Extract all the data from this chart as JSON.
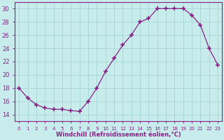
{
  "x": [
    0,
    1,
    2,
    3,
    4,
    5,
    6,
    7,
    8,
    9,
    10,
    11,
    12,
    13,
    14,
    15,
    16,
    17,
    18,
    19,
    20,
    21,
    22,
    23
  ],
  "y": [
    18,
    16.5,
    15.5,
    15,
    14.8,
    14.8,
    14.6,
    14.5,
    16,
    18,
    20.5,
    22.5,
    24.5,
    26,
    28,
    28.5,
    30,
    30,
    30,
    30,
    29,
    27.5,
    24,
    21.5
  ],
  "line_color": "#882288",
  "marker": "+",
  "marker_size": 4,
  "marker_lw": 1.2,
  "bg_color": "#c8ecec",
  "grid_color": "#aad8d8",
  "xlabel": "Windchill (Refroidissement éolien,°C)",
  "xlabel_color": "#882288",
  "tick_color": "#882288",
  "spine_color": "#882288",
  "ylim": [
    13,
    31
  ],
  "yticks": [
    14,
    16,
    18,
    20,
    22,
    24,
    26,
    28,
    30
  ],
  "xtick_labels": [
    "0",
    "1",
    "2",
    "3",
    "4",
    "5",
    "6",
    "7",
    "8",
    "9",
    "10",
    "11",
    "12",
    "13",
    "14",
    "15",
    "16",
    "17",
    "18",
    "19",
    "20",
    "21",
    "22",
    "23"
  ],
  "ytick_fontsize": 6,
  "xtick_fontsize": 5,
  "xlabel_fontsize": 6,
  "xlabel_fontweight": "bold"
}
